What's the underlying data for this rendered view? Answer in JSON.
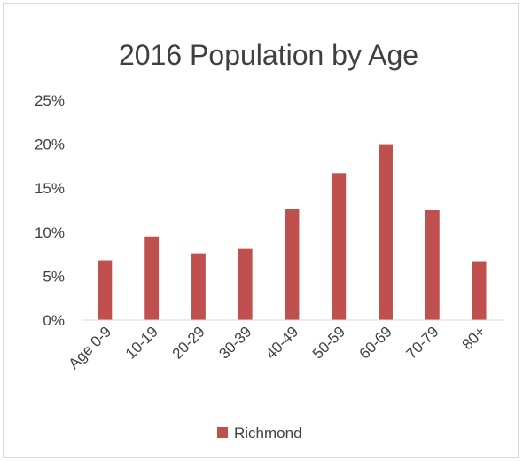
{
  "chart_data": {
    "type": "bar",
    "title": "2016 Population by Age",
    "categories": [
      "Age 0-9",
      "10-19",
      "20-29",
      "30-39",
      "40-49",
      "50-59",
      "60-69",
      "70-79",
      "80+"
    ],
    "series": [
      {
        "name": "Richmond",
        "color": "#c0504d",
        "values": [
          6.8,
          9.5,
          7.6,
          8.1,
          12.6,
          16.7,
          20.0,
          12.5,
          6.7
        ]
      }
    ],
    "ylim": [
      0,
      25
    ],
    "yticks": [
      "0%",
      "5%",
      "10%",
      "15%",
      "20%",
      "25%"
    ],
    "ytick_values": [
      0,
      5,
      10,
      15,
      20,
      25
    ],
    "grid": false,
    "legend_position": "bottom"
  }
}
